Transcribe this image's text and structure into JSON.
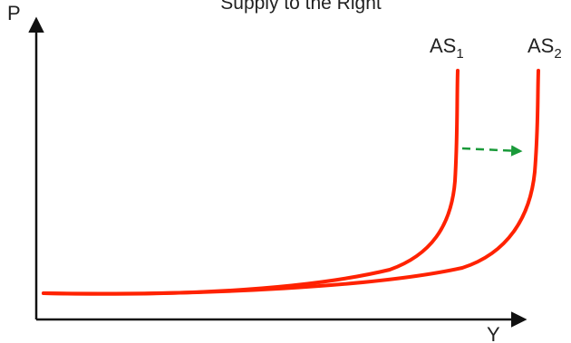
{
  "title": "Supply to the Right",
  "axes": {
    "y_label": "P",
    "x_label": "Y"
  },
  "curves": [
    {
      "name": "AS",
      "subscript": "1"
    },
    {
      "name": "AS",
      "subscript": "2"
    }
  ],
  "shift_arrow": {
    "style": "dashed",
    "direction": "right"
  },
  "colors": {
    "curve": "#ff2200",
    "arrow": "#1a9a3a",
    "axis": "#111111"
  }
}
